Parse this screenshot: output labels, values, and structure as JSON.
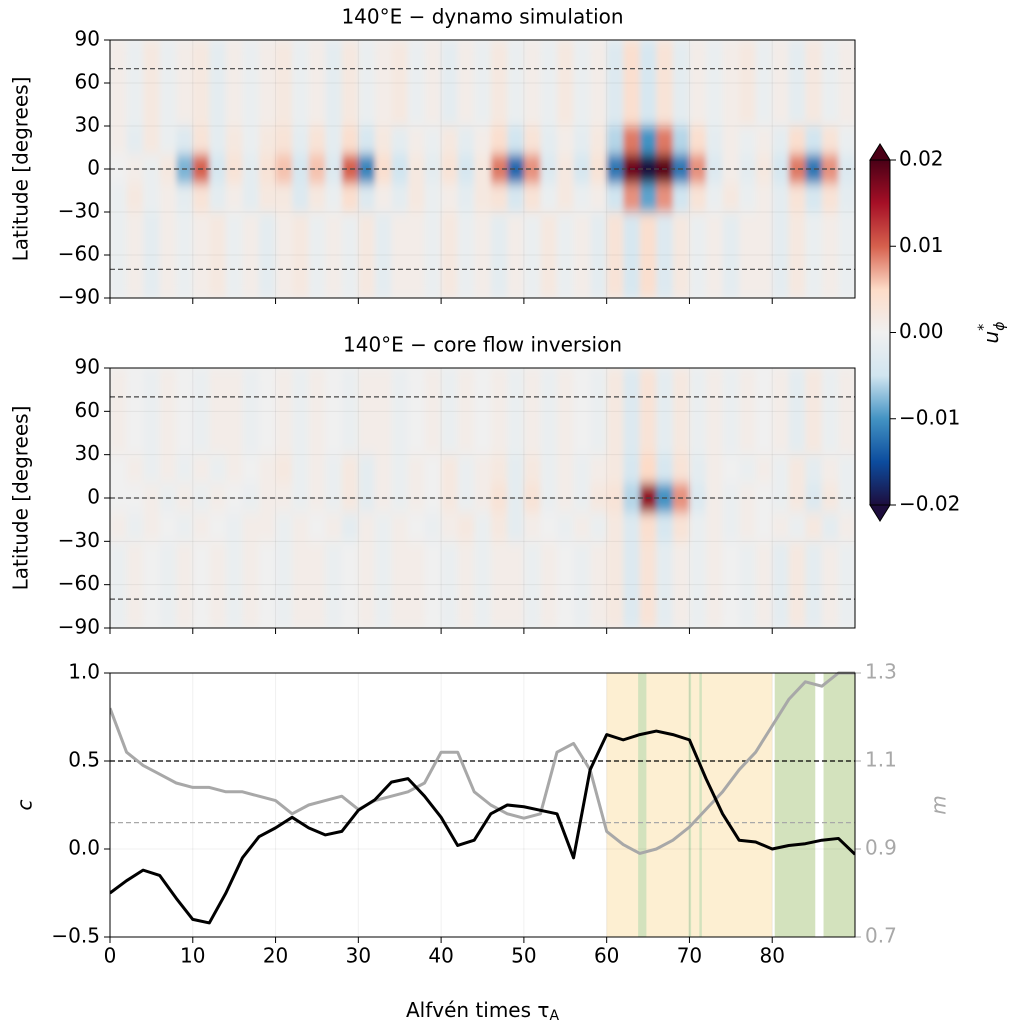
{
  "chart_data": [
    {
      "type": "heatmap",
      "title": "140°E − dynamo simulation",
      "ylabel": "Latitude [degrees]",
      "xlim": [
        0,
        90
      ],
      "xticks": [
        0,
        10,
        20,
        30,
        40,
        50,
        60,
        70,
        80
      ],
      "ylim": [
        -90,
        90
      ],
      "yticks": [
        {
          "value": -90,
          "label": "−90"
        },
        {
          "value": -60,
          "label": "−60"
        },
        {
          "value": -30,
          "label": "−30"
        },
        0,
        30,
        60,
        90
      ],
      "y_edges": [
        90,
        30,
        10,
        -10,
        -30,
        -90
      ],
      "hlines": [
        70,
        0,
        -70
      ],
      "matrix": [
        [
          0.001,
          -0.001,
          0.002,
          -0.001,
          0.001,
          0.002,
          -0.002,
          0.001,
          -0.001,
          0.001,
          0.002,
          -0.001,
          0.001,
          -0.002,
          0.002,
          -0.001,
          0.001,
          0.002,
          -0.001,
          0.001,
          -0.002,
          0.001,
          -0.001,
          0.002,
          -0.001,
          0.001,
          -0.001,
          0.002,
          -0.001,
          0.001,
          -0.003,
          0.004,
          -0.004,
          0.003,
          -0.002,
          0.001,
          -0.001,
          0.001,
          0.002,
          -0.001,
          0.001,
          -0.002,
          0.002,
          -0.001,
          0.001
        ],
        [
          0.001,
          -0.002,
          0.002,
          -0.001,
          -0.003,
          0.003,
          -0.002,
          0.002,
          -0.001,
          0.002,
          0.003,
          -0.002,
          0.003,
          -0.002,
          0.004,
          -0.004,
          0.002,
          -0.002,
          0.001,
          -0.001,
          0.002,
          -0.002,
          0.001,
          0.004,
          -0.005,
          0.003,
          -0.002,
          0.001,
          -0.002,
          0.002,
          -0.006,
          0.009,
          -0.01,
          0.009,
          -0.006,
          0.004,
          -0.002,
          0.001,
          -0.001,
          0.001,
          -0.002,
          0.004,
          -0.005,
          0.003,
          -0.001
        ],
        [
          0.0,
          0.001,
          -0.001,
          0.002,
          -0.008,
          0.01,
          -0.004,
          0.003,
          -0.002,
          0.003,
          0.006,
          -0.004,
          0.006,
          -0.003,
          0.01,
          -0.011,
          0.004,
          -0.005,
          0.002,
          -0.002,
          0.003,
          -0.004,
          0.002,
          0.009,
          -0.013,
          0.008,
          -0.003,
          0.002,
          -0.004,
          0.003,
          -0.012,
          0.018,
          -0.02,
          0.019,
          -0.012,
          0.008,
          -0.003,
          0.001,
          -0.002,
          0.002,
          -0.004,
          0.009,
          -0.012,
          0.008,
          -0.003
        ],
        [
          -0.001,
          0.002,
          -0.001,
          0.001,
          -0.002,
          0.003,
          -0.002,
          0.001,
          -0.002,
          0.002,
          0.002,
          -0.003,
          0.002,
          -0.001,
          0.004,
          -0.003,
          0.001,
          -0.002,
          0.002,
          -0.001,
          0.001,
          -0.002,
          0.002,
          0.003,
          -0.004,
          0.003,
          -0.001,
          0.002,
          -0.001,
          0.001,
          -0.005,
          0.008,
          -0.009,
          0.008,
          -0.005,
          0.003,
          -0.001,
          0.002,
          -0.001,
          0.001,
          -0.002,
          0.003,
          -0.004,
          0.003,
          -0.002
        ],
        [
          -0.001,
          0.001,
          -0.002,
          0.001,
          -0.001,
          0.001,
          0.002,
          -0.001,
          0.001,
          -0.002,
          0.001,
          0.002,
          -0.001,
          0.001,
          -0.001,
          0.002,
          -0.002,
          0.001,
          0.001,
          -0.001,
          0.002,
          -0.001,
          0.001,
          -0.002,
          0.001,
          -0.001,
          0.002,
          -0.001,
          0.001,
          -0.002,
          0.003,
          -0.004,
          0.004,
          -0.003,
          0.002,
          -0.001,
          0.001,
          -0.002,
          0.001,
          0.001,
          -0.002,
          0.002,
          -0.001,
          0.001,
          -0.001
        ]
      ]
    },
    {
      "type": "heatmap",
      "title": "140°E − core flow inversion",
      "ylabel": "Latitude [degrees]",
      "xlim": [
        0,
        90
      ],
      "xticks": [
        0,
        10,
        20,
        30,
        40,
        50,
        60,
        70,
        80
      ],
      "ylim": [
        -90,
        90
      ],
      "yticks": [
        {
          "value": -90,
          "label": "−90"
        },
        {
          "value": -60,
          "label": "−60"
        },
        {
          "value": -30,
          "label": "−30"
        },
        0,
        30,
        60,
        90
      ],
      "y_edges": [
        90,
        30,
        10,
        -10,
        -30,
        -90
      ],
      "hlines": [
        70,
        0,
        -70
      ],
      "matrix": [
        [
          0.001,
          0.0,
          -0.001,
          0.001,
          0.0,
          -0.001,
          0.001,
          0.001,
          -0.001,
          0.0,
          0.001,
          -0.001,
          0.001,
          0.0,
          -0.001,
          0.001,
          0.001,
          -0.001,
          0.0,
          0.001,
          -0.001,
          0.001,
          0.0,
          0.001,
          -0.001,
          0.001,
          -0.001,
          0.001,
          0.0,
          -0.001,
          0.002,
          -0.003,
          0.003,
          -0.002,
          0.002,
          -0.001,
          0.001,
          -0.001,
          0.001,
          0.0,
          0.001,
          -0.002,
          0.002,
          -0.001,
          0.001
        ],
        [
          0.0,
          0.001,
          -0.001,
          0.001,
          -0.001,
          0.001,
          -0.001,
          0.001,
          0.0,
          0.001,
          0.002,
          -0.001,
          0.001,
          -0.001,
          0.002,
          -0.002,
          0.001,
          -0.001,
          0.001,
          0.0,
          0.002,
          -0.001,
          0.001,
          0.002,
          -0.002,
          0.002,
          -0.001,
          0.001,
          -0.001,
          0.001,
          0.002,
          -0.004,
          0.005,
          -0.004,
          0.003,
          -0.002,
          0.001,
          0.0,
          -0.001,
          0.001,
          -0.001,
          0.002,
          -0.002,
          0.001,
          -0.001
        ],
        [
          0.0,
          0.0,
          0.001,
          -0.001,
          0.001,
          -0.001,
          0.001,
          0.0,
          -0.001,
          0.001,
          0.001,
          -0.001,
          0.001,
          -0.001,
          0.002,
          -0.002,
          0.001,
          -0.001,
          0.001,
          0.0,
          0.002,
          -0.001,
          0.001,
          0.003,
          -0.002,
          0.003,
          -0.001,
          0.001,
          -0.001,
          0.002,
          0.003,
          -0.006,
          0.016,
          -0.01,
          0.008,
          -0.003,
          0.001,
          -0.001,
          0.001,
          0.0,
          -0.001,
          0.002,
          -0.003,
          0.002,
          -0.001
        ],
        [
          0.001,
          -0.001,
          0.001,
          0.0,
          -0.001,
          0.001,
          0.0,
          -0.001,
          0.001,
          0.001,
          -0.001,
          0.001,
          0.0,
          0.001,
          -0.002,
          0.001,
          -0.001,
          0.001,
          0.0,
          -0.001,
          0.001,
          0.002,
          -0.001,
          0.002,
          -0.002,
          0.001,
          0.0,
          -0.001,
          0.001,
          -0.001,
          0.002,
          -0.003,
          0.004,
          -0.004,
          0.003,
          -0.001,
          0.001,
          -0.001,
          0.001,
          0.0,
          0.001,
          -0.001,
          0.002,
          -0.002,
          0.001
        ],
        [
          -0.001,
          0.001,
          0.0,
          -0.001,
          0.001,
          0.0,
          0.001,
          -0.001,
          0.001,
          0.0,
          -0.001,
          0.001,
          0.001,
          -0.001,
          0.0,
          0.001,
          -0.001,
          0.001,
          0.001,
          0.0,
          -0.001,
          0.001,
          -0.001,
          0.001,
          0.001,
          -0.001,
          0.001,
          0.0,
          -0.001,
          0.001,
          0.002,
          -0.003,
          0.003,
          -0.002,
          0.001,
          -0.001,
          0.001,
          0.0,
          -0.001,
          0.001,
          -0.002,
          0.002,
          -0.002,
          0.001,
          -0.001
        ]
      ]
    },
    {
      "type": "line",
      "xlabel": "Alfvén times τ",
      "xlabel_sub": "A",
      "ylabel": "c",
      "y2label": "m",
      "xlim": [
        0,
        90
      ],
      "xticks": [
        0,
        10,
        20,
        30,
        40,
        50,
        60,
        70,
        80
      ],
      "ylim": [
        -0.5,
        1.0
      ],
      "yticks": [
        {
          "value": -0.5,
          "label": "−0.5"
        },
        {
          "value": 0,
          "label": "0.0"
        },
        0.5,
        {
          "value": 1.0,
          "label": "1.0"
        }
      ],
      "y2lim": [
        0.7,
        1.3
      ],
      "y2ticks": [
        0.7,
        0.9,
        1.1,
        1.3
      ],
      "spans": [
        {
          "x": [
            60,
            80
          ],
          "color": "#fdefd2"
        },
        {
          "x": [
            63.8,
            64.8
          ],
          "color": "#d3e2bd"
        },
        {
          "x": [
            69.9,
            70.2
          ],
          "color": "#d3e2bd"
        },
        {
          "x": [
            71.2,
            71.5
          ],
          "color": "#d3e2bd"
        },
        {
          "x": [
            80.3,
            85.2
          ],
          "color": "#d3e2bd"
        },
        {
          "x": [
            86.2,
            90
          ],
          "color": "#d3e2bd"
        }
      ],
      "hlines": [
        {
          "y": 0.5,
          "color": "#000000"
        },
        {
          "y": 0.15,
          "color": "#a8a8a8"
        }
      ],
      "x": [
        0,
        2,
        4,
        6,
        8,
        10,
        12,
        14,
        16,
        18,
        20,
        22,
        24,
        26,
        28,
        30,
        32,
        34,
        36,
        38,
        40,
        42,
        44,
        46,
        48,
        50,
        52,
        54,
        56,
        58,
        60,
        62,
        64,
        66,
        68,
        70,
        72,
        74,
        76,
        78,
        80,
        82,
        84,
        86,
        88,
        90
      ],
      "series": [
        {
          "name": "c",
          "color": "#000000",
          "values": [
            -0.25,
            -0.18,
            -0.12,
            -0.15,
            -0.28,
            -0.4,
            -0.42,
            -0.25,
            -0.05,
            0.07,
            0.12,
            0.18,
            0.12,
            0.08,
            0.1,
            0.22,
            0.28,
            0.38,
            0.4,
            0.3,
            0.18,
            0.02,
            0.05,
            0.2,
            0.25,
            0.24,
            0.22,
            0.2,
            -0.05,
            0.45,
            0.65,
            0.62,
            0.65,
            0.67,
            0.65,
            0.62,
            0.4,
            0.2,
            0.05,
            0.04,
            0.0,
            0.02,
            0.03,
            0.05,
            0.06,
            -0.03
          ]
        },
        {
          "name": "m",
          "color": "#a8a8a8",
          "axis": "y2",
          "values": [
            1.22,
            1.12,
            1.09,
            1.07,
            1.05,
            1.04,
            1.04,
            1.03,
            1.03,
            1.02,
            1.01,
            0.98,
            1.0,
            1.01,
            1.02,
            0.99,
            1.01,
            1.02,
            1.03,
            1.05,
            1.12,
            1.12,
            1.03,
            1.0,
            0.98,
            0.97,
            0.98,
            1.12,
            1.14,
            1.08,
            0.94,
            0.91,
            0.89,
            0.9,
            0.92,
            0.95,
            0.99,
            1.03,
            1.08,
            1.12,
            1.18,
            1.24,
            1.28,
            1.27,
            1.3,
            1.3
          ]
        }
      ]
    },
    {
      "type": "colorbar",
      "label": "u",
      "label_sup": "*",
      "label_sub": "ϕ",
      "ylim": [
        -0.02,
        0.02
      ],
      "yticks": [
        {
          "value": -0.02,
          "label": "−0.02"
        },
        {
          "value": -0.01,
          "label": "−0.01"
        },
        {
          "value": 0,
          "label": "0.00"
        },
        0.01,
        0.02
      ],
      "colormap": [
        "#1d0d3d",
        "#0c4c9e",
        "#4393c3",
        "#d1e5f0",
        "#f0f0f0",
        "#fddbc7",
        "#d6604d",
        "#a50f26",
        "#4a0016"
      ]
    }
  ]
}
